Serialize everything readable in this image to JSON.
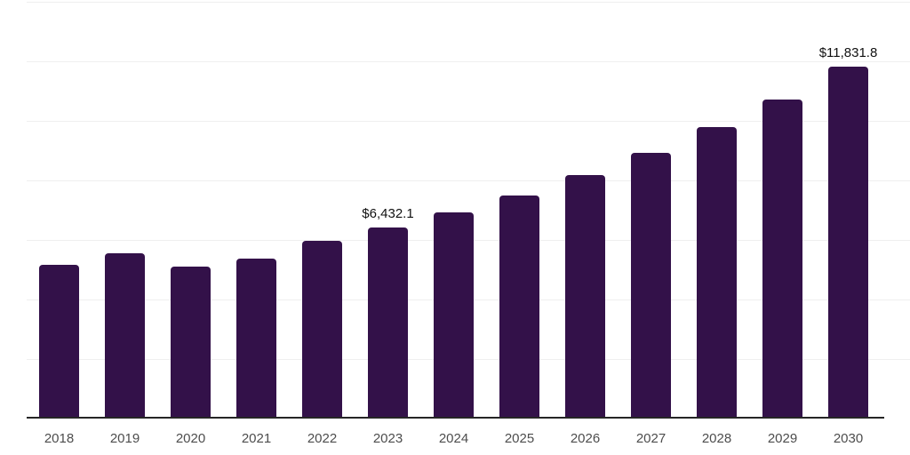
{
  "chart_data": {
    "type": "bar",
    "title": "",
    "xlabel": "",
    "ylabel": "",
    "categories": [
      "2018",
      "2019",
      "2020",
      "2021",
      "2022",
      "2023",
      "2024",
      "2025",
      "2026",
      "2027",
      "2028",
      "2029",
      "2030"
    ],
    "values": [
      5150,
      5550,
      5100,
      5370,
      5970,
      6432.1,
      6925,
      7490,
      8180,
      8925,
      9790,
      10715,
      11831.8
    ],
    "data_labels": {
      "2023": "$6,432.1",
      "2030": "$11,831.8"
    },
    "ylim": [
      0,
      14000
    ],
    "gridline_step": 2000,
    "grid": true,
    "legend": false,
    "colors": {
      "bar": "#331149",
      "axis": "#262626",
      "gridline": "#efefef",
      "data_label": "#111111",
      "tick_label": "#4d4d4d",
      "background": "#ffffff"
    }
  }
}
